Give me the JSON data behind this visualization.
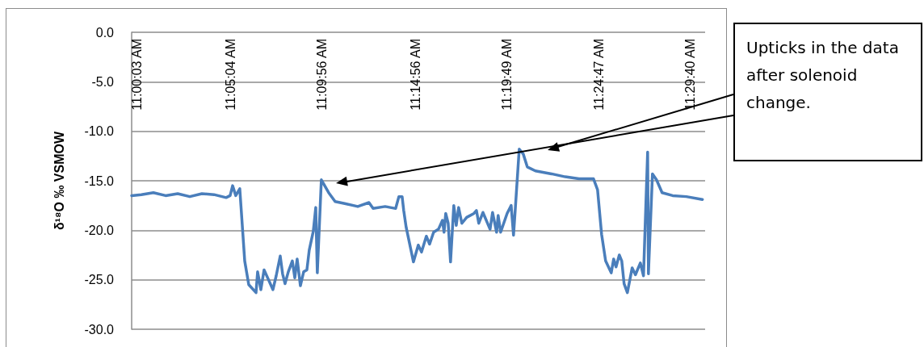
{
  "chart_data": {
    "type": "line",
    "ylabel": "δ¹⁸O ‰ VSMOW",
    "annotations": [
      "Upticks in the data after solenoid change."
    ],
    "xlim": [
      10.9958,
      11.5076
    ],
    "xticks": [
      {
        "value": 11.0008,
        "label": "11:00:03 AM"
      },
      {
        "value": 11.0844,
        "label": "11:05:04 AM"
      },
      {
        "value": 11.1656,
        "label": "11:09:56 AM"
      },
      {
        "value": 11.2489,
        "label": "11:14:56 AM"
      },
      {
        "value": 11.3303,
        "label": "11:19:49 AM"
      },
      {
        "value": 11.4131,
        "label": "11:24:47 AM"
      },
      {
        "value": 11.4944,
        "label": "11:29:40 AM"
      }
    ],
    "ylim": [
      -30,
      0
    ],
    "yticks": [
      {
        "value": 0,
        "label": "0.0"
      },
      {
        "value": -5,
        "label": "-5.0"
      },
      {
        "value": -10,
        "label": "-10.0"
      },
      {
        "value": -15,
        "label": "-15.0"
      },
      {
        "value": -20,
        "label": "-20.0"
      },
      {
        "value": -25,
        "label": "-25.0"
      },
      {
        "value": -30,
        "label": "-30.0"
      }
    ],
    "grid": "y",
    "marker": "none",
    "line_style": "solid",
    "series": [
      {
        "color": "#4a7ebb",
        "x": [
          10.9958,
          11.0044,
          11.0152,
          11.0261,
          11.0369,
          11.0477,
          11.0585,
          11.0693,
          11.0801,
          11.0837,
          11.0859,
          11.0887,
          11.0923,
          11.0967,
          11.1003,
          11.1068,
          11.1082,
          11.1111,
          11.114,
          11.1219,
          11.1248,
          11.1284,
          11.1305,
          11.1327,
          11.1356,
          11.1392,
          11.1414,
          11.1435,
          11.1464,
          11.1493,
          11.1522,
          11.1543,
          11.1579,
          11.1601,
          11.1615,
          11.1651,
          11.1716,
          11.1774,
          11.186,
          11.1976,
          11.2076,
          11.2113,
          11.222,
          11.2314,
          11.2343,
          11.2372,
          11.2386,
          11.2408,
          11.2473,
          11.2516,
          11.2545,
          11.2588,
          11.2617,
          11.2653,
          11.2696,
          11.2732,
          11.2746,
          11.2761,
          11.2783,
          11.2804,
          11.2833,
          11.2855,
          11.2876,
          11.2905,
          11.2948,
          11.3013,
          11.3035,
          11.3056,
          11.3093,
          11.3157,
          11.3179,
          11.3215,
          11.3229,
          11.3251,
          11.3309,
          11.3345,
          11.3366,
          11.3381,
          11.3417,
          11.3453,
          11.3489,
          11.3561,
          11.3705,
          11.3828,
          11.395,
          11.408,
          11.4116,
          11.4152,
          11.4188,
          11.4238,
          11.426,
          11.4281,
          11.431,
          11.4332,
          11.4353,
          11.4382,
          11.4425,
          11.4454,
          11.4498,
          11.4526,
          11.4563,
          11.457,
          11.4606,
          11.4642,
          11.4692,
          11.4786,
          11.4908,
          11.5052
        ],
        "values": [
          -16.5,
          -16.4,
          -16.2,
          -16.5,
          -16.3,
          -16.6,
          -16.3,
          -16.4,
          -16.7,
          -16.5,
          -15.5,
          -16.5,
          -15.8,
          -23.1,
          -25.5,
          -26.3,
          -24.2,
          -26.0,
          -24.0,
          -26.0,
          -24.6,
          -22.6,
          -24.4,
          -25.4,
          -24.2,
          -23.1,
          -24.8,
          -22.9,
          -25.6,
          -24.2,
          -24.0,
          -22.0,
          -20.1,
          -17.7,
          -24.3,
          -14.9,
          -16.2,
          -17.1,
          -17.3,
          -17.6,
          -17.2,
          -17.8,
          -17.6,
          -17.8,
          -16.6,
          -16.6,
          -18.0,
          -19.7,
          -23.2,
          -21.5,
          -22.2,
          -20.6,
          -21.4,
          -20.2,
          -19.9,
          -19.0,
          -20.2,
          -18.3,
          -19.3,
          -23.2,
          -17.5,
          -19.5,
          -17.7,
          -19.3,
          -18.7,
          -18.3,
          -18.0,
          -19.3,
          -18.2,
          -19.9,
          -18.2,
          -20.2,
          -18.5,
          -20.2,
          -18.3,
          -17.5,
          -20.5,
          -18.0,
          -11.8,
          -12.3,
          -13.6,
          -14.0,
          -14.3,
          -14.6,
          -14.8,
          -14.8,
          -15.9,
          -20.4,
          -23.1,
          -24.3,
          -22.9,
          -23.7,
          -22.5,
          -23.1,
          -25.4,
          -26.3,
          -23.8,
          -24.5,
          -23.3,
          -24.6,
          -12.1,
          -24.4,
          -14.3,
          -14.9,
          -16.2,
          -16.5,
          -16.6,
          -16.9
        ]
      }
    ]
  }
}
